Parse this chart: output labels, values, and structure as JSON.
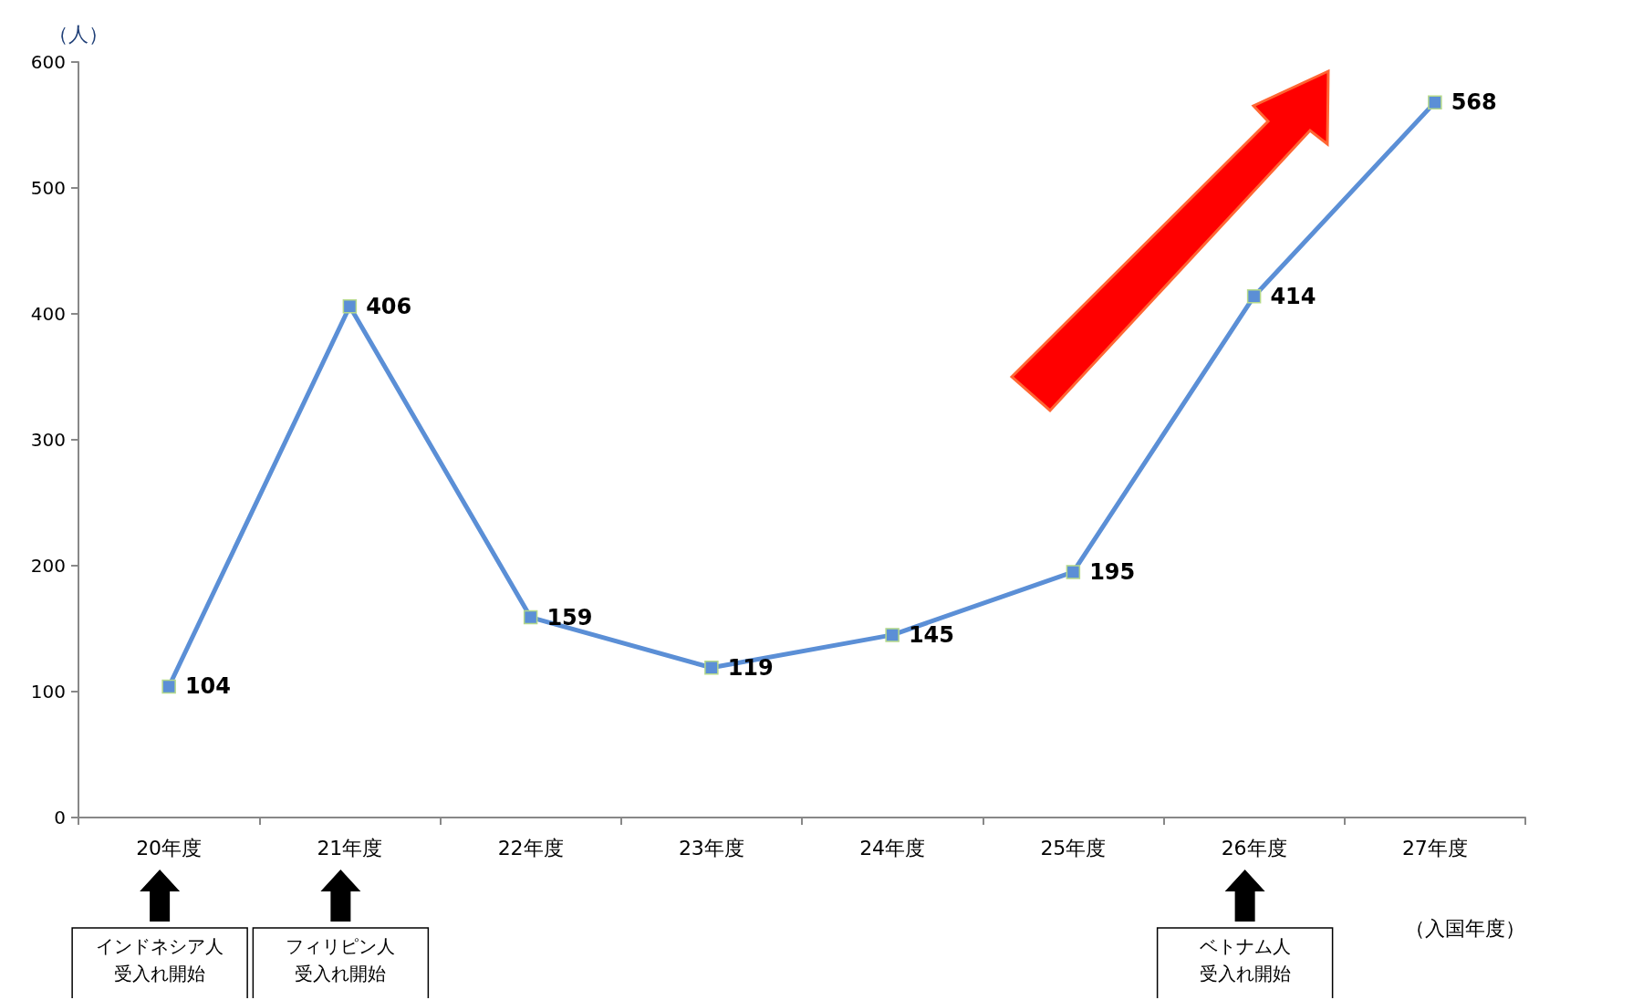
{
  "chart_data": {
    "type": "line",
    "ylabel": "（人）",
    "xlabel": "（入国年度）",
    "categories": [
      "20年度",
      "21年度",
      "22年度",
      "23年度",
      "24年度",
      "25年度",
      "26年度",
      "27年度"
    ],
    "series": [
      {
        "color": "#5b8fd6",
        "values": [
          104,
          406,
          159,
          119,
          145,
          195,
          414,
          568
        ]
      }
    ],
    "ylim": [
      0,
      600
    ],
    "yticks": [
      0,
      100,
      200,
      300,
      400,
      500,
      600
    ],
    "grid": false,
    "marker": "square",
    "line_style": "solid",
    "data_labels": true,
    "annotations": [
      "インドネシア人",
      "受入れ開始",
      "フィリピン人",
      "受入れ開始",
      "ベトナム人",
      "受入れ開始"
    ]
  }
}
